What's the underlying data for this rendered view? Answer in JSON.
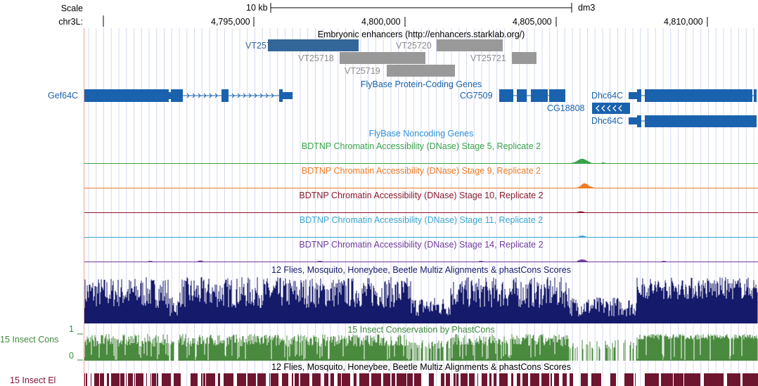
{
  "ruler": {
    "scale_label": "Scale",
    "chrom_label": "chr3L:",
    "scale_bar_label": "10 kb",
    "assembly": "dm3",
    "ticks": [
      "4,795,000",
      "4,800,000",
      "4,805,000",
      "4,810,000"
    ]
  },
  "tracks": {
    "enhancers": {
      "title": "Embryonic enhancers (http://enhancers.starklab.org/)",
      "items": [
        {
          "name": "VT25717",
          "color": "#336699"
        },
        {
          "name": "VT25718",
          "color": "#999999"
        },
        {
          "name": "VT25719",
          "color": "#999999"
        },
        {
          "name": "VT25720",
          "color": "#999999"
        },
        {
          "name": "VT25721",
          "color": "#999999"
        }
      ]
    },
    "protein_coding": {
      "title": "FlyBase Protein-Coding Genes",
      "color": "#1a62ad",
      "genes": [
        {
          "name": "Gef64C",
          "strand": "+"
        },
        {
          "name": "CG7509",
          "strand": "+"
        },
        {
          "name": "Dhc64C",
          "strand": "+"
        },
        {
          "name": "CG18808",
          "strand": "-"
        },
        {
          "name": "Dhc64C",
          "strand": "+"
        }
      ]
    },
    "noncoding": {
      "title": "FlyBase Noncoding Genes",
      "color": "#2f8fd8"
    },
    "dnase": [
      {
        "title": "BDTNP Chromatin Accessibility (DNase) Stage 5, Replicate 2",
        "color": "#3aa34a"
      },
      {
        "title": "BDTNP Chromatin Accessibility (DNase) Stage 9, Replicate 2",
        "color": "#f07b22"
      },
      {
        "title": "BDTNP Chromatin Accessibility (DNase) Stage 10, Replicate 2",
        "color": "#8b1a2a"
      },
      {
        "title": "BDTNP Chromatin Accessibility (DNase) Stage 11, Replicate 2",
        "color": "#3ba5cf"
      },
      {
        "title": "BDTNP Chromatin Accessibility (DNase) Stage 14, Replicate 2",
        "color": "#6f3a9a"
      }
    ],
    "multiz": {
      "title": "12 Flies, Mosquito, Honeybee, Beetle Multiz Alignments & phastCons Scores",
      "color": "#151a6a"
    },
    "phastcons": {
      "title": "15 Insect Conservation by PhastCons",
      "side_label": "15 Insect Cons",
      "axis_max": "1",
      "axis_min": "0",
      "color": "#4a8a3e",
      "label_color": "#3e8a3e"
    },
    "elements": {
      "title": "12 Flies, Mosquito, Honeybee, Beetle Multiz Alignments & phastCons Scores",
      "side_label": "15 Insect El",
      "color": "#6e1530",
      "label_color": "#7a1030"
    }
  }
}
